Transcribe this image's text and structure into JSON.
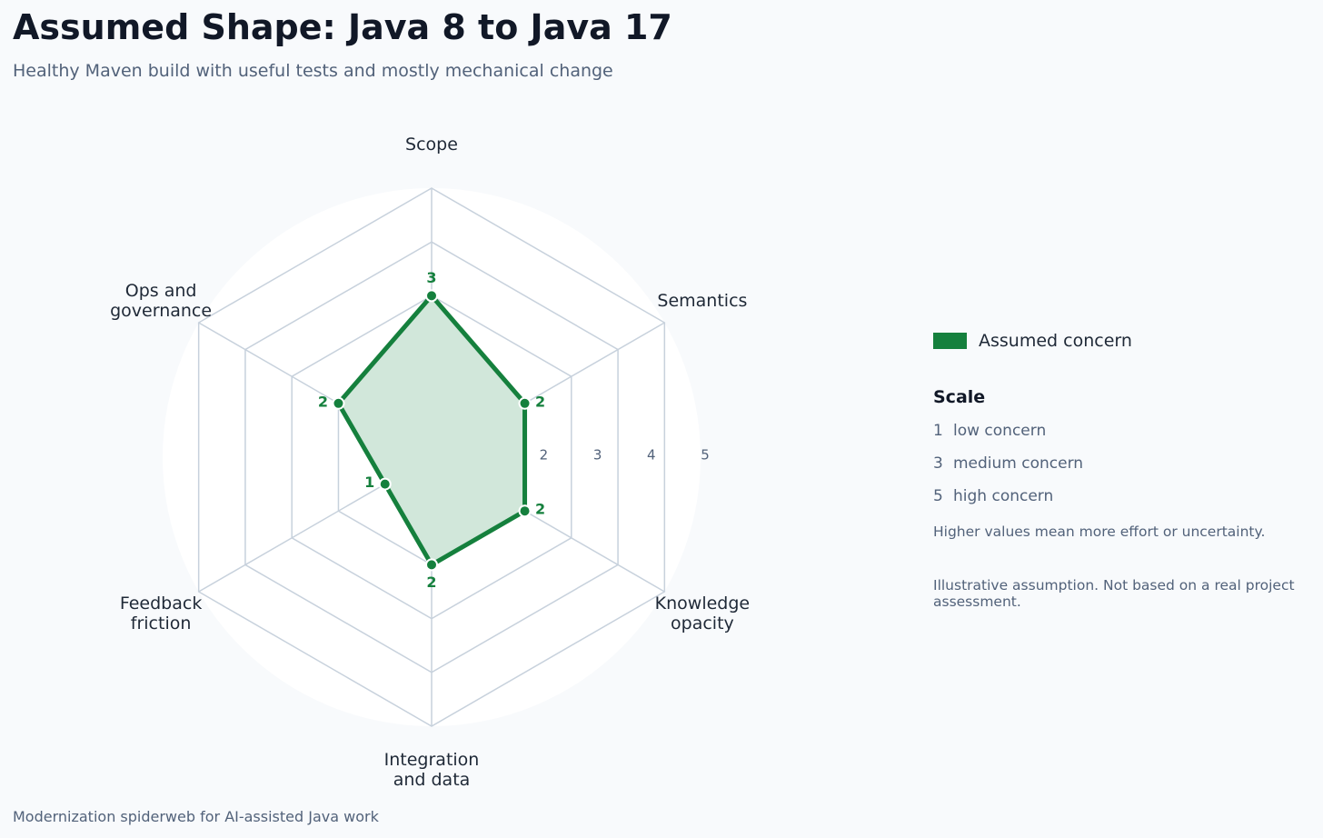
{
  "header": {
    "title": "Assumed Shape: Java 8 to Java 17",
    "subtitle": "Healthy Maven build with useful tests and mostly mechanical change"
  },
  "footer": {
    "caption": "Modernization spiderweb for AI-assisted Java work"
  },
  "legend": {
    "series_label": "Assumed concern",
    "scale_title": "Scale",
    "scale_items": [
      {
        "value": "1",
        "label": "low concern"
      },
      {
        "value": "3",
        "label": "medium concern"
      },
      {
        "value": "5",
        "label": "high concern"
      }
    ],
    "scale_note": "Higher values mean more effort or uncertainty.",
    "disclaimer": "Illustrative assumption. Not based on a real project assessment."
  },
  "chart_data": {
    "type": "radar",
    "axes": [
      [
        "Scope"
      ],
      [
        "Semantics"
      ],
      [
        "Knowledge",
        "opacity"
      ],
      [
        "Integration",
        "and data"
      ],
      [
        "Feedback",
        "friction"
      ],
      [
        "Ops and",
        "governance"
      ]
    ],
    "series": [
      {
        "name": "Assumed concern",
        "values": [
          3,
          2,
          2,
          2,
          1,
          2
        ]
      }
    ],
    "rlim": [
      0,
      5
    ],
    "ring_tick_labels": [
      "2",
      "3",
      "4",
      "5"
    ],
    "colors": {
      "series_line": "#15803d",
      "series_fill": "#d1e7da",
      "grid": "#c7d1dc",
      "plot_background": "#ffffff"
    }
  }
}
